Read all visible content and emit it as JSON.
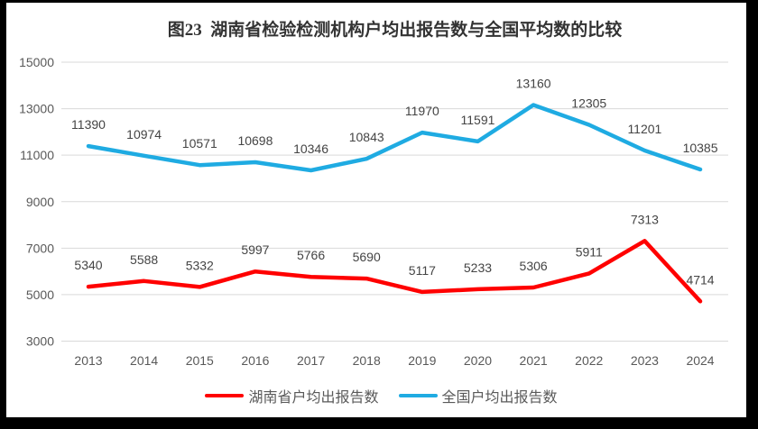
{
  "title": "图23  湖南省检验检测机构户均出报告数与全国平均数的比较",
  "colors": {
    "hunan": "#ff0000",
    "national": "#1fabe2",
    "grid": "#d9d9d9",
    "axis_text": "#595959",
    "label_text": "#444444",
    "title_text": "#333333",
    "frame": "#000000",
    "background": "#ffffff"
  },
  "chart_data": {
    "type": "line",
    "title": "图23  湖南省检验检测机构户均出报告数与全国平均数的比较",
    "x": [
      "2013",
      "2014",
      "2015",
      "2016",
      "2017",
      "2018",
      "2019",
      "2020",
      "2021",
      "2022",
      "2023",
      "2024"
    ],
    "series": [
      {
        "name": "湖南省户均出报告数",
        "color_key": "hunan",
        "values": [
          5340,
          5588,
          5332,
          5997,
          5766,
          5690,
          5117,
          5233,
          5306,
          5911,
          7313,
          4714
        ]
      },
      {
        "name": "全国户均出报告数",
        "color_key": "national",
        "values": [
          11390,
          10974,
          10571,
          10698,
          10346,
          10843,
          11970,
          11591,
          13160,
          12305,
          11201,
          10385
        ]
      }
    ],
    "ylim": [
      3000,
      15000
    ],
    "yticks": [
      3000,
      5000,
      7000,
      9000,
      11000,
      13000,
      15000
    ],
    "grid": true,
    "legend_position": "bottom",
    "data_labels": "above"
  },
  "legend": {
    "items": [
      {
        "label": "湖南省户均出报告数",
        "color_key": "hunan"
      },
      {
        "label": "全国户均出报告数",
        "color_key": "national"
      }
    ]
  }
}
